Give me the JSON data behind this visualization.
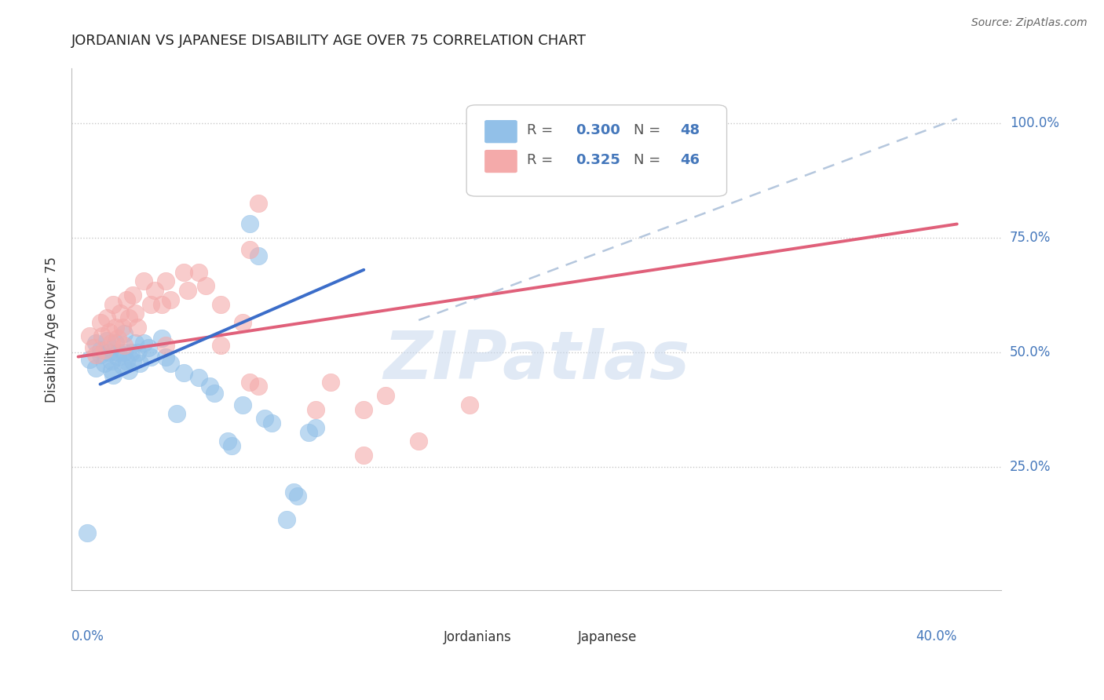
{
  "title": "JORDANIAN VS JAPANESE DISABILITY AGE OVER 75 CORRELATION CHART",
  "source": "Source: ZipAtlas.com",
  "ylabel": "Disability Age Over 75",
  "legend_blue_r": "0.300",
  "legend_blue_n": "48",
  "legend_pink_r": "0.325",
  "legend_pink_n": "46",
  "legend_bottom_blue": "Jordanians",
  "legend_bottom_pink": "Japanese",
  "blue_scatter_color": "#92C0E8",
  "pink_scatter_color": "#F4AAAA",
  "blue_line_color": "#3B6DC9",
  "pink_line_color": "#E0607A",
  "dashed_line_color": "#A8BDD8",
  "watermark": "ZIPatlas",
  "jordanian_points": [
    [
      0.005,
      0.485
    ],
    [
      0.008,
      0.52
    ],
    [
      0.008,
      0.465
    ],
    [
      0.01,
      0.505
    ],
    [
      0.01,
      0.495
    ],
    [
      0.012,
      0.475
    ],
    [
      0.013,
      0.525
    ],
    [
      0.014,
      0.5
    ],
    [
      0.015,
      0.48
    ],
    [
      0.015,
      0.46
    ],
    [
      0.016,
      0.45
    ],
    [
      0.017,
      0.52
    ],
    [
      0.018,
      0.5
    ],
    [
      0.018,
      0.49
    ],
    [
      0.02,
      0.47
    ],
    [
      0.021,
      0.54
    ],
    [
      0.021,
      0.5
    ],
    [
      0.022,
      0.48
    ],
    [
      0.023,
      0.46
    ],
    [
      0.024,
      0.5
    ],
    [
      0.025,
      0.48
    ],
    [
      0.026,
      0.52
    ],
    [
      0.027,
      0.5
    ],
    [
      0.028,
      0.475
    ],
    [
      0.03,
      0.52
    ],
    [
      0.032,
      0.51
    ],
    [
      0.033,
      0.49
    ],
    [
      0.038,
      0.53
    ],
    [
      0.04,
      0.49
    ],
    [
      0.042,
      0.475
    ],
    [
      0.048,
      0.455
    ],
    [
      0.055,
      0.445
    ],
    [
      0.06,
      0.425
    ],
    [
      0.062,
      0.41
    ],
    [
      0.075,
      0.385
    ],
    [
      0.085,
      0.355
    ],
    [
      0.088,
      0.345
    ],
    [
      0.095,
      0.135
    ],
    [
      0.105,
      0.325
    ],
    [
      0.108,
      0.335
    ],
    [
      0.078,
      0.78
    ],
    [
      0.082,
      0.71
    ],
    [
      0.004,
      0.105
    ],
    [
      0.098,
      0.195
    ],
    [
      0.1,
      0.185
    ],
    [
      0.045,
      0.365
    ],
    [
      0.068,
      0.305
    ],
    [
      0.07,
      0.295
    ]
  ],
  "japanese_points": [
    [
      0.005,
      0.535
    ],
    [
      0.007,
      0.51
    ],
    [
      0.008,
      0.495
    ],
    [
      0.01,
      0.565
    ],
    [
      0.011,
      0.535
    ],
    [
      0.012,
      0.505
    ],
    [
      0.013,
      0.575
    ],
    [
      0.014,
      0.545
    ],
    [
      0.015,
      0.52
    ],
    [
      0.016,
      0.605
    ],
    [
      0.017,
      0.555
    ],
    [
      0.018,
      0.53
    ],
    [
      0.019,
      0.585
    ],
    [
      0.02,
      0.555
    ],
    [
      0.021,
      0.515
    ],
    [
      0.022,
      0.615
    ],
    [
      0.023,
      0.575
    ],
    [
      0.025,
      0.625
    ],
    [
      0.026,
      0.585
    ],
    [
      0.027,
      0.555
    ],
    [
      0.03,
      0.655
    ],
    [
      0.033,
      0.605
    ],
    [
      0.035,
      0.635
    ],
    [
      0.038,
      0.605
    ],
    [
      0.04,
      0.655
    ],
    [
      0.042,
      0.615
    ],
    [
      0.048,
      0.675
    ],
    [
      0.05,
      0.635
    ],
    [
      0.055,
      0.675
    ],
    [
      0.058,
      0.645
    ],
    [
      0.065,
      0.605
    ],
    [
      0.075,
      0.565
    ],
    [
      0.078,
      0.435
    ],
    [
      0.082,
      0.425
    ],
    [
      0.115,
      0.435
    ],
    [
      0.14,
      0.405
    ],
    [
      0.235,
      0.975
    ],
    [
      0.082,
      0.825
    ],
    [
      0.078,
      0.725
    ],
    [
      0.108,
      0.375
    ],
    [
      0.13,
      0.375
    ],
    [
      0.178,
      0.385
    ],
    [
      0.13,
      0.275
    ],
    [
      0.155,
      0.305
    ],
    [
      0.04,
      0.515
    ],
    [
      0.065,
      0.515
    ]
  ],
  "blue_line_x": [
    0.01,
    0.13
  ],
  "blue_line_y": [
    0.43,
    0.68
  ],
  "pink_line_x": [
    0.0,
    0.4
  ],
  "pink_line_y": [
    0.49,
    0.78
  ],
  "dash_line_x": [
    0.155,
    0.4
  ],
  "dash_line_y": [
    0.57,
    1.01
  ],
  "xlim": [
    -0.003,
    0.42
  ],
  "ylim": [
    -0.02,
    1.12
  ],
  "yticks": [
    0.25,
    0.5,
    0.75,
    1.0
  ],
  "ytick_labels": [
    "25.0%",
    "50.0%",
    "75.0%",
    "100.0%"
  ]
}
